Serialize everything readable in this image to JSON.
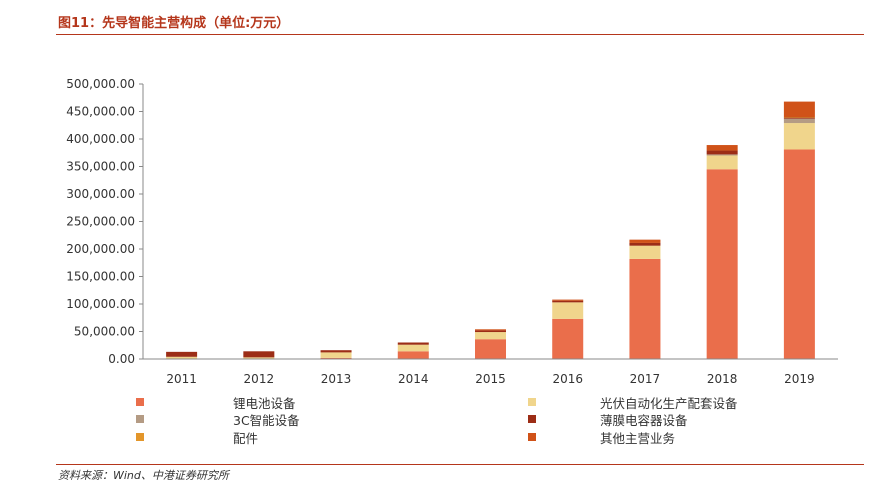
{
  "figure_title": "图11：先导智能主营构成（单位:万元）",
  "source": "资料来源：Wind、中港证券研究所",
  "colors": {
    "lithium": "#ea6e4b",
    "solar": "#f0d58c",
    "3c": "#b49b84",
    "thinfilm": "#9c2d16",
    "parts": "#e3962a",
    "other": "#d05218",
    "rule": "#b5361b"
  },
  "chart_data": {
    "type": "bar",
    "stacked": true,
    "categories": [
      "2011",
      "2012",
      "2013",
      "2014",
      "2015",
      "2016",
      "2017",
      "2018",
      "2019"
    ],
    "ylim": [
      0,
      500000
    ],
    "yticks": [
      "0.00",
      "50,000.00",
      "100,000.00",
      "150,000.00",
      "200,000.00",
      "250,000.00",
      "300,000.00",
      "350,000.00",
      "400,000.00",
      "450,000.00",
      "500,000.00"
    ],
    "legend_position": "bottom",
    "series": [
      {
        "name": "锂电池设备",
        "color_key": "lithium",
        "values": [
          0,
          0,
          2000,
          14000,
          36000,
          73000,
          182000,
          345000,
          381000
        ]
      },
      {
        "name": "光伏自动化生产配套设备",
        "color_key": "solar",
        "values": [
          4000,
          3000,
          10000,
          12000,
          13000,
          30000,
          24000,
          25000,
          48000
        ]
      },
      {
        "name": "3C智能设备",
        "color_key": "3c",
        "values": [
          0,
          0,
          0,
          0,
          0,
          0,
          0,
          2000,
          8000
        ]
      },
      {
        "name": "薄膜电容器设备",
        "color_key": "thinfilm",
        "values": [
          9000,
          11000,
          4000,
          4000,
          3000,
          3000,
          5000,
          7000,
          2000
        ]
      },
      {
        "name": "配件",
        "color_key": "parts",
        "values": [
          0,
          0,
          0,
          0,
          0,
          0,
          0,
          0,
          1000
        ]
      },
      {
        "name": "其他主营业务",
        "color_key": "other",
        "values": [
          0,
          0,
          0,
          0,
          2000,
          2000,
          6000,
          10000,
          28000
        ]
      }
    ]
  }
}
